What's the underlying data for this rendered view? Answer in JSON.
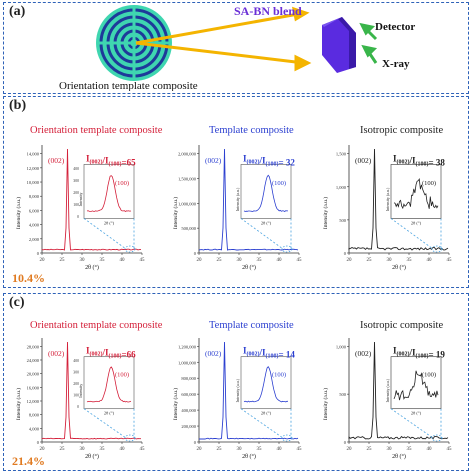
{
  "panel_a": {
    "label": "(a)",
    "blend_label": "SA-BN blend",
    "detector_label": "Detector",
    "xray_label": "X-ray",
    "composite_label": "Orientation template composite"
  },
  "panel_b": {
    "label": "(b)",
    "percent": "10.4%",
    "charts": [
      {
        "title": "Orientation template composite",
        "color": "#d4203a",
        "peak_label": "(002)",
        "inset_peak_label": "(100)",
        "ratio_label": "I(002)/I(100)=65",
        "ylabel": "Intensity (a.u.)",
        "xlabel": "2θ (°)",
        "yticks": [
          "0",
          "2,000",
          "4,000",
          "6,000",
          "8,000",
          "10,000",
          "12,000",
          "14,000"
        ],
        "xticks": [
          "20",
          "25",
          "30",
          "35",
          "40",
          "45"
        ],
        "inset_yticks": [
          "0",
          "100",
          "200",
          "300",
          "400"
        ],
        "inset_ylabel": "Intensity",
        "inset_xlabel": "2θ (°)"
      },
      {
        "title": "Template composite",
        "color": "#2b3fd0",
        "peak_label": "(002)",
        "inset_peak_label": "(100)",
        "ratio_label": "I(002)/I(100)= 32",
        "ylabel": "Intensity (a.u.)",
        "xlabel": "2θ (°)",
        "yticks": [
          "0",
          "500,000",
          "1,000,000",
          "1,500,000",
          "2,000,000"
        ],
        "xticks": [
          "20",
          "25",
          "30",
          "35",
          "40",
          "45"
        ],
        "inset_yticks": [],
        "inset_ylabel": "Intensity (a.u.)",
        "inset_xlabel": "2θ (°)"
      },
      {
        "title": "Isotropic composite",
        "color": "#222222",
        "peak_label": "(002)",
        "inset_peak_label": "(100)",
        "ratio_label": "I(002)/I(100)= 38",
        "ylabel": "Intensity (a.u.)",
        "xlabel": "2θ (°)",
        "yticks": [
          "0",
          "500",
          "1,000",
          "1,500"
        ],
        "xticks": [
          "20",
          "25",
          "30",
          "35",
          "40",
          "45"
        ],
        "inset_yticks": [],
        "inset_ylabel": "Intensity (a.u.)",
        "inset_xlabel": "2θ (°)"
      }
    ]
  },
  "panel_c": {
    "label": "(c)",
    "percent": "21.4%",
    "charts": [
      {
        "title": "Orientation template composite",
        "color": "#d4203a",
        "peak_label": "(002)",
        "inset_peak_label": "(100)",
        "ratio_label": "I(002)/I(100)=66",
        "ylabel": "Intensity (a.u.)",
        "xlabel": "2θ (°)",
        "yticks": [
          "0",
          "4,000",
          "8,000",
          "12,000",
          "16,000",
          "20,000",
          "24,000",
          "28,000"
        ],
        "xticks": [
          "20",
          "25",
          "30",
          "35",
          "40",
          "45"
        ],
        "inset_yticks": [
          "0",
          "100",
          "200",
          "300",
          "400"
        ],
        "inset_ylabel": "Intensity",
        "inset_xlabel": "2θ (°)"
      },
      {
        "title": "Template composite",
        "color": "#2b3fd0",
        "peak_label": "(002)",
        "inset_peak_label": "(100)",
        "ratio_label": "I(002)/I(100)= 14",
        "ylabel": "Intensity (a.u.)",
        "xlabel": "2θ (°)",
        "yticks": [
          "0",
          "200,000",
          "400,000",
          "600,000",
          "800,000",
          "1,000,000",
          "1,200,000"
        ],
        "xticks": [
          "20",
          "25",
          "30",
          "35",
          "40",
          "45"
        ],
        "inset_yticks": [],
        "inset_ylabel": "Intensity (a.u.)",
        "inset_xlabel": "2θ (°)"
      },
      {
        "title": "Isotropic composite",
        "color": "#222222",
        "peak_label": "(002)",
        "inset_peak_label": "(100)",
        "ratio_label": "I(002)/I(100)= 19",
        "ylabel": "Intensity (a.u.)",
        "xlabel": "2θ (°)",
        "yticks": [
          "0",
          "500",
          "1,000"
        ],
        "xticks": [
          "20",
          "25",
          "30",
          "35",
          "40",
          "45"
        ],
        "inset_yticks": [],
        "inset_ylabel": "Intensity (a.u.)",
        "inset_xlabel": "2θ (°)"
      }
    ]
  }
}
